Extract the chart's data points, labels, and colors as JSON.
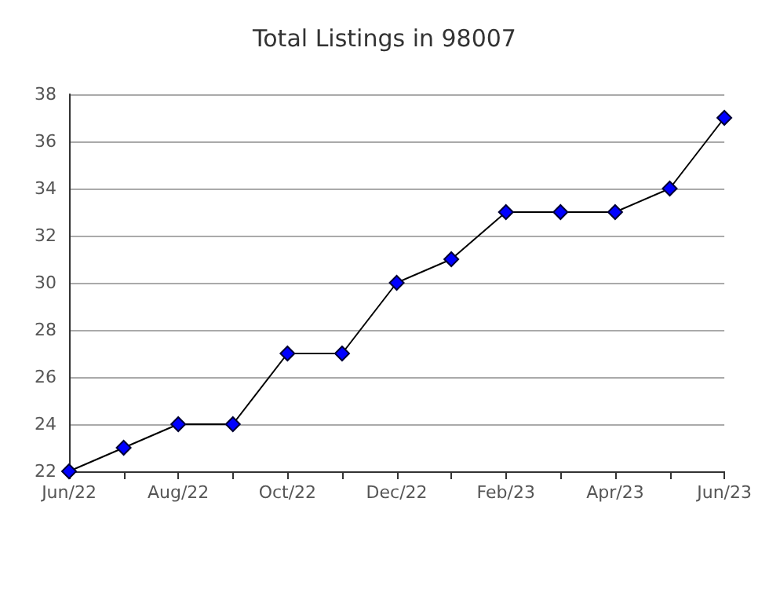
{
  "chart_data": {
    "type": "line",
    "title": "Total Listings in 98007",
    "categories": [
      "Jun/22",
      null,
      "Aug/22",
      null,
      "Oct/22",
      null,
      "Dec/22",
      null,
      "Feb/23",
      null,
      "Apr/23",
      null,
      "Jun/23"
    ],
    "series": [
      {
        "color": "#0000ff",
        "values": [
          22,
          23,
          24,
          24,
          27,
          27,
          30,
          31,
          33,
          33,
          33,
          34,
          37
        ]
      }
    ],
    "ylim": [
      22,
      38
    ],
    "yticks": [
      22,
      24,
      26,
      28,
      30,
      32,
      34,
      36,
      38
    ],
    "grid": "y",
    "marker": "diamond",
    "line_style": "solid"
  }
}
